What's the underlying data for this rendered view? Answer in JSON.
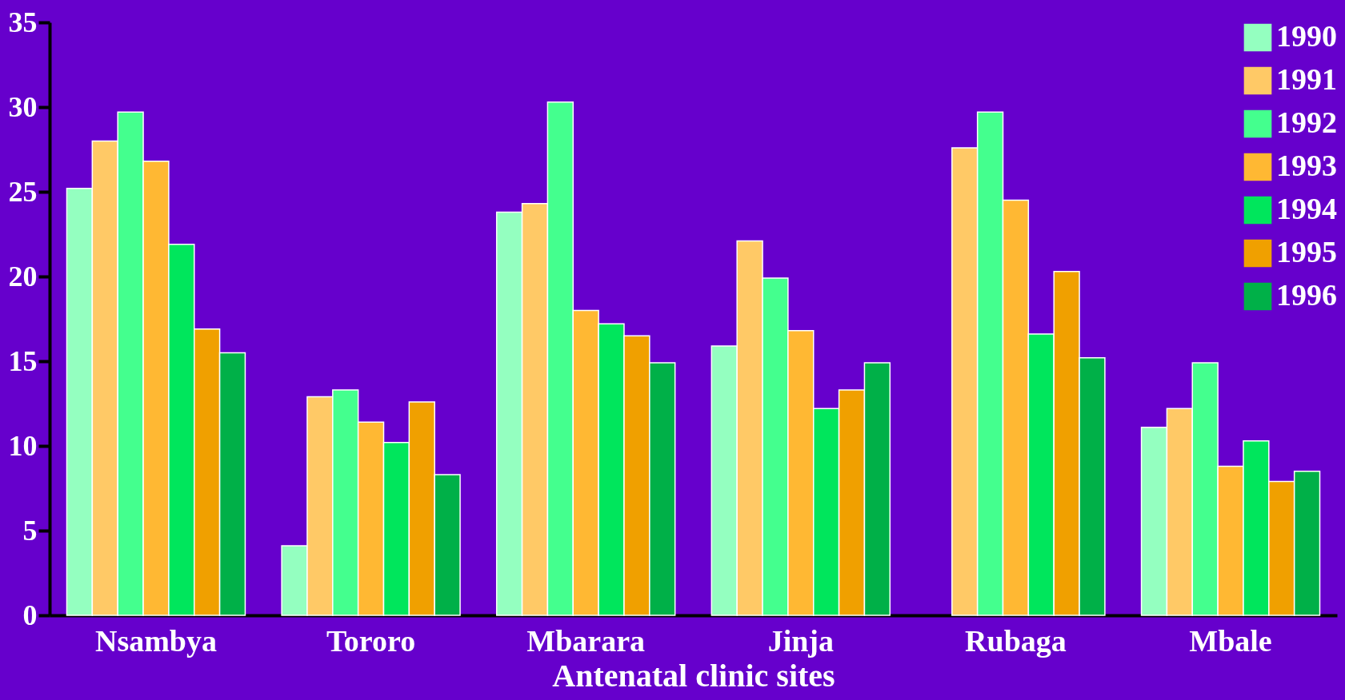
{
  "chart_data": {
    "type": "bar",
    "xlabel": "Antenatal clinic sites",
    "categories": [
      "Nsambya",
      "Tororo",
      "Mbarara",
      "Jinja",
      "Rubaga",
      "Mbale"
    ],
    "series": [
      {
        "name": "1990",
        "color": "#94ffc0",
        "values": [
          25.2,
          4.1,
          23.8,
          15.9,
          null,
          11.1
        ]
      },
      {
        "name": "1991",
        "color": "#ffc966",
        "values": [
          28.0,
          12.9,
          24.3,
          22.1,
          27.6,
          12.2
        ]
      },
      {
        "name": "1992",
        "color": "#44ff8e",
        "values": [
          29.7,
          13.3,
          30.3,
          19.9,
          29.7,
          14.9
        ]
      },
      {
        "name": "1993",
        "color": "#ffb833",
        "values": [
          26.8,
          11.4,
          18.0,
          16.8,
          24.5,
          8.8
        ]
      },
      {
        "name": "1994",
        "color": "#00e65c",
        "values": [
          21.9,
          10.2,
          17.2,
          12.2,
          16.6,
          10.3
        ]
      },
      {
        "name": "1995",
        "color": "#f0a000",
        "values": [
          16.9,
          12.6,
          16.5,
          13.3,
          20.3,
          7.9
        ]
      },
      {
        "name": "1996",
        "color": "#00b048",
        "values": [
          15.5,
          8.3,
          14.9,
          14.9,
          15.2,
          8.5
        ]
      }
    ],
    "ylim": [
      0,
      35
    ],
    "yticks": [
      0,
      5,
      10,
      15,
      20,
      25,
      30,
      35
    ],
    "grid": false,
    "legend": "top right"
  }
}
